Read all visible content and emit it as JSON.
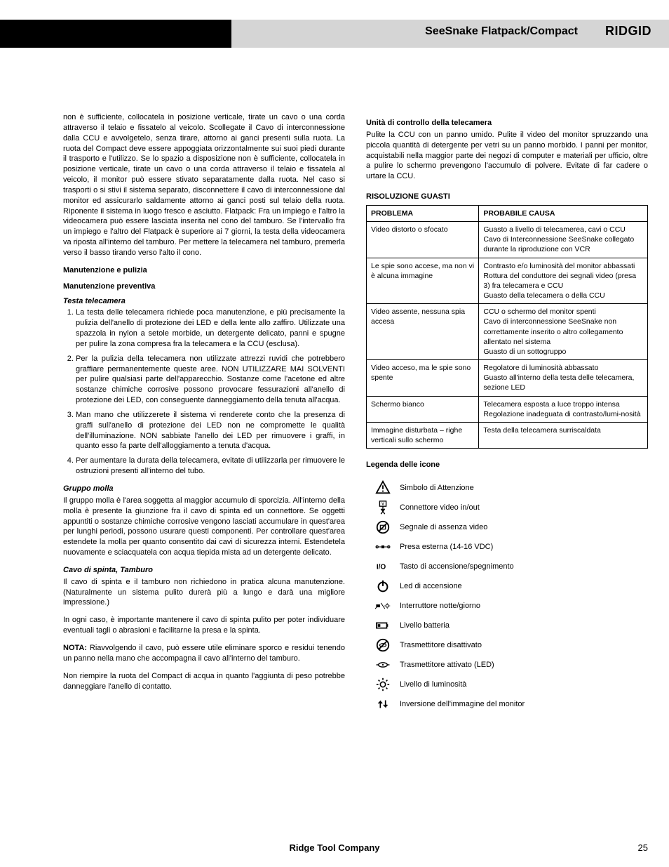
{
  "header": {
    "title": "SeeSnake Flatpack/Compact",
    "brand": "RIDGID"
  },
  "left": {
    "para1": "non è sufficiente, collocatela in posizione verticale, tirate un cavo o una corda attraverso il telaio e fissatelo al veicolo. Scollegate il Cavo di interconnessione dalla CCU e avvolgetelo, senza tirare, attorno ai ganci presenti sulla ruota. La ruota del Compact deve essere appoggiata orizzontalmente sui suoi piedi durante il trasporto e l'utilizzo. Se lo spazio a disposizione non è sufficiente, collocatela in posizione verticale, tirate un cavo o una corda attraverso il telaio e fissatela al veicolo, il monitor può essere stivato separatamente dalla ruota. Nel caso si trasporti o si stivi il sistema separato, disconnettere il cavo di interconnessione dal monitor ed assicurarlo saldamente attorno ai ganci posti sul telaio della ruota. Riponente il sistema in luogo fresco e asciutto. Flatpack: Fra un impiego e l'altro la videocamera può essere lasciata inserita nel cono del tamburo. Se l'intervallo fra un impiego e l'altro del Flatpack è superiore ai 7 giorni, la testa della videocamera va riposta all'interno del tamburo. Per mettere la telecamera nel tamburo, premerla verso il basso tirando verso l'alto il cono.",
    "h_maint": "Manutenzione e pulizia",
    "h_prev": "Manutenzione preventiva",
    "h_testa": "Testa telecamera",
    "li1": "La testa delle telecamera richiede poca manutenzione, e più precisamente la pulizia dell'anello di protezione dei LED e della lente allo zaffiro. Utilizzate una spazzola in nylon a setole morbide, un detergente delicato, panni e spugne per pulire la zona compresa fra la telecamera e la CCU (esclusa).",
    "li2": "Per la pulizia della telecamera non utilizzate attrezzi ruvidi che potrebbero graffiare permanentemente queste aree. NON UTILIZZARE MAI SOLVENTI per pulire qualsiasi parte dell'apparecchio. Sostanze come l'acetone ed altre sostanze chimiche corrosive possono provocare fessurazioni all'anello di protezione dei LED, con conseguente danneggiamento della tenuta all'acqua.",
    "li3": "Man mano che utilizzerete il sistema vi renderete conto che la presenza di graffi sull'anello di protezione dei LED non ne compromette le qualità dell'illuminazione. NON sabbiate l'anello dei LED per rimuovere i graffi, in quanto esso fa parte dell'alloggiamento a tenuta d'acqua.",
    "li4": "Per aumentare la durata della telecamera, evitate di utilizzarla per rimuovere le ostruzioni presenti all'interno del tubo.",
    "h_gruppo": "Gruppo molla",
    "p_gruppo": "Il gruppo molla è l'area soggetta al maggior accumulo di sporcizia. All'interno della molla è presente la giunzione fra il cavo di spinta ed un connettore. Se oggetti appuntiti o sostanze chimiche corrosive vengono lasciati accumulare in quest'area per lunghi periodi, possono usurare questi componenti. Per controllare quest'area estendete la molla per quanto consentito dai cavi di sicurezza interni. Estendetela nuovamente e sciacquatela con acqua tiepida mista ad un detergente delicato.",
    "h_cavo": "Cavo di spinta, Tamburo",
    "p_cavo1": "Il cavo di spinta e il tamburo non richiedono in pratica alcuna manutenzione. (Naturalmente un sistema pulito durerà più a lungo e darà una migliore impressione.)",
    "p_cavo2": "In ogni caso, è importante mantenere il cavo di spinta pulito per poter individuare eventuali tagli o abrasioni e facilitarne la presa e la spinta.",
    "nota_label": "NOTA:",
    "nota_text": " Riavvolgendo il cavo, può essere utile eliminare sporco e residui tenendo un panno nella mano che accompagna il cavo all'interno del tamburo.",
    "p_final": "Non riempire la ruota del Compact di acqua in quanto l'aggiunta di peso potrebbe danneggiare l'anello di contatto."
  },
  "right": {
    "h_unita": "Unità di controllo della telecamera",
    "p_unita": "Pulite la CCU con un panno umido. Pulite il video del monitor spruzzando una piccola quantità di detergente per vetri su un panno morbido. I panni per monitor, acquistabili nella maggior parte dei negozi di computer e materiali per ufficio, oltre a pulire lo schermo prevengono l'accumulo di polvere. Evitate di far cadere o urtare la CCU.",
    "h_risoluzione": "RISOLUZIONE GUASTI",
    "th_problema": "PROBLEMA",
    "th_causa": "PROBABILE CAUSA",
    "rows": [
      [
        "Video distorto o sfocato",
        "Guasto a livello di telecamerea, cavi o CCU Cavo di Interconnessione SeeSnake collegato durante la riproduzione con VCR"
      ],
      [
        "Le spie sono accese, ma non vi è alcuna immagine",
        "Contrasto e/o luminosità del monitor abbassati\nRottura del conduttore dei segnali video (presa 3) fra telecamera e CCU\nGuasto della telecamera o della CCU"
      ],
      [
        "Video assente, nessuna spia accesa",
        "CCU o schermo del monitor spenti\nCavo di interconnessione SeeSnake non correttamente inserito o altro collegamento allentato nel sistema\nGuasto di un sottogruppo"
      ],
      [
        "Video acceso, ma le spie sono spente",
        "Regolatore di luminosità abbassato\nGuasto all'interno della testa delle telecamera, sezione LED"
      ],
      [
        "Schermo bianco",
        "Telecamera esposta a luce troppo intensa\nRegolazione inadeguata di contrasto/lumi-nosità"
      ],
      [
        "Immagine disturbata – righe verticali sullo schermo",
        "Testa della telecamera surriscaldata"
      ]
    ],
    "h_legenda": "Legenda delle icone",
    "legend": [
      {
        "name": "warning-icon",
        "label": "Simbolo di Attenzione"
      },
      {
        "name": "video-io-icon",
        "label": "Connettore video in/out"
      },
      {
        "name": "no-video-icon",
        "label": "Segnale di assenza video"
      },
      {
        "name": "ext-power-icon",
        "label": "Presa esterna (14-16 VDC)"
      },
      {
        "name": "power-button-icon",
        "label": "Tasto di accensione/spegnimento"
      },
      {
        "name": "power-led-icon",
        "label": "Led di accensione"
      },
      {
        "name": "day-night-icon",
        "label": "Interruttore notte/giorno"
      },
      {
        "name": "battery-icon",
        "label": "Livello batteria"
      },
      {
        "name": "tx-off-icon",
        "label": "Trasmettitore disattivato"
      },
      {
        "name": "tx-on-icon",
        "label": "Trasmettitore attivato (LED)"
      },
      {
        "name": "brightness-icon",
        "label": "Livello di luminosità"
      },
      {
        "name": "flip-icon",
        "label": "Inversione dell'immagine del monitor"
      }
    ]
  },
  "footer": {
    "company": "Ridge Tool Company",
    "page": "25"
  }
}
